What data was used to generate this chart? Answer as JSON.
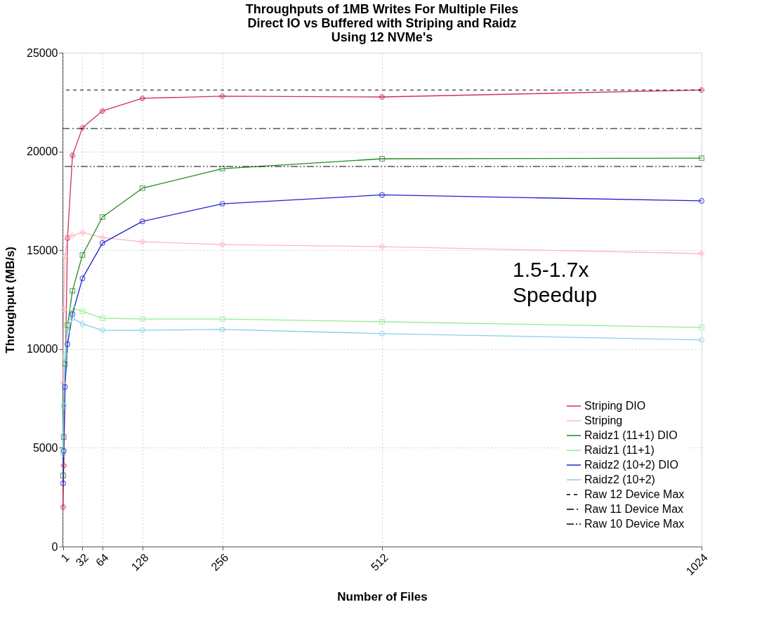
{
  "chart_data": {
    "type": "line",
    "title": "Throughputs of 1MB Writes For Multiple Files\nDirect IO vs Buffered with Striping and Raidz\nUsing 12 NVMe's",
    "xlabel": "Number of Files",
    "ylabel": "Throughput (MB/s)",
    "x": [
      1,
      2,
      4,
      8,
      16,
      32,
      64,
      128,
      256,
      512,
      1024
    ],
    "series": [
      {
        "name": "Striping DIO",
        "color": "#d0305a",
        "marker": "cross",
        "x": [
          1,
          2,
          8,
          16,
          32,
          64,
          128,
          256,
          512,
          1024
        ],
        "values": [
          2000,
          4100,
          15600,
          19800,
          21200,
          22050,
          22690,
          22800,
          22760,
          23110
        ]
      },
      {
        "name": "Striping",
        "color": "#ffb6c1",
        "marker": "cross",
        "values": [
          8300,
          12000,
          14700,
          15700,
          15750,
          15900,
          15640,
          15430,
          15290,
          15180,
          14830
        ]
      },
      {
        "name": "Raidz1 (11+1) DIO",
        "color": "#228b22",
        "marker": "square",
        "values": [
          3600,
          5550,
          9250,
          11200,
          12950,
          14760,
          16680,
          18140,
          19130,
          19630,
          19660
        ]
      },
      {
        "name": "Raidz1 (11+1)",
        "color": "#90ee90",
        "marker": "square",
        "values": [
          4800,
          7080,
          9640,
          11170,
          12050,
          11910,
          11560,
          11520,
          11520,
          11380,
          11090
        ]
      },
      {
        "name": "Raidz2 (10+2) DIO",
        "color": "#2020d0",
        "marker": "circle",
        "values": [
          3200,
          4840,
          8080,
          10240,
          11770,
          13580,
          15360,
          16460,
          17350,
          17800,
          17500
        ]
      },
      {
        "name": "Raidz2 (10+2)",
        "color": "#87ceeb",
        "marker": "circle",
        "values": [
          4690,
          7150,
          9320,
          10880,
          11560,
          11270,
          10950,
          10950,
          10990,
          10780,
          10460
        ]
      }
    ],
    "ref_lines": [
      {
        "axis": "y",
        "value": 23110,
        "label": "Raw 12 Device Max",
        "color": "#000000",
        "line_style": "dashed"
      },
      {
        "axis": "y",
        "value": 21160,
        "label": "Raw 11 Device Max",
        "color": "#000000",
        "line_style": "dashdot"
      },
      {
        "axis": "y",
        "value": 19240,
        "label": "Raw 10 Device Max",
        "color": "#000000",
        "line_style": "dashdotdot"
      }
    ],
    "annotations": [
      "1.5-1.7x\nSpeedup"
    ],
    "xlim": [
      0,
      1024
    ],
    "xticks": [
      1,
      32,
      64,
      128,
      256,
      512,
      1024
    ],
    "ylim": [
      0,
      25000
    ],
    "yticks": [
      0,
      5000,
      10000,
      15000,
      20000,
      25000
    ],
    "grid": true,
    "legend": "bottom right"
  }
}
